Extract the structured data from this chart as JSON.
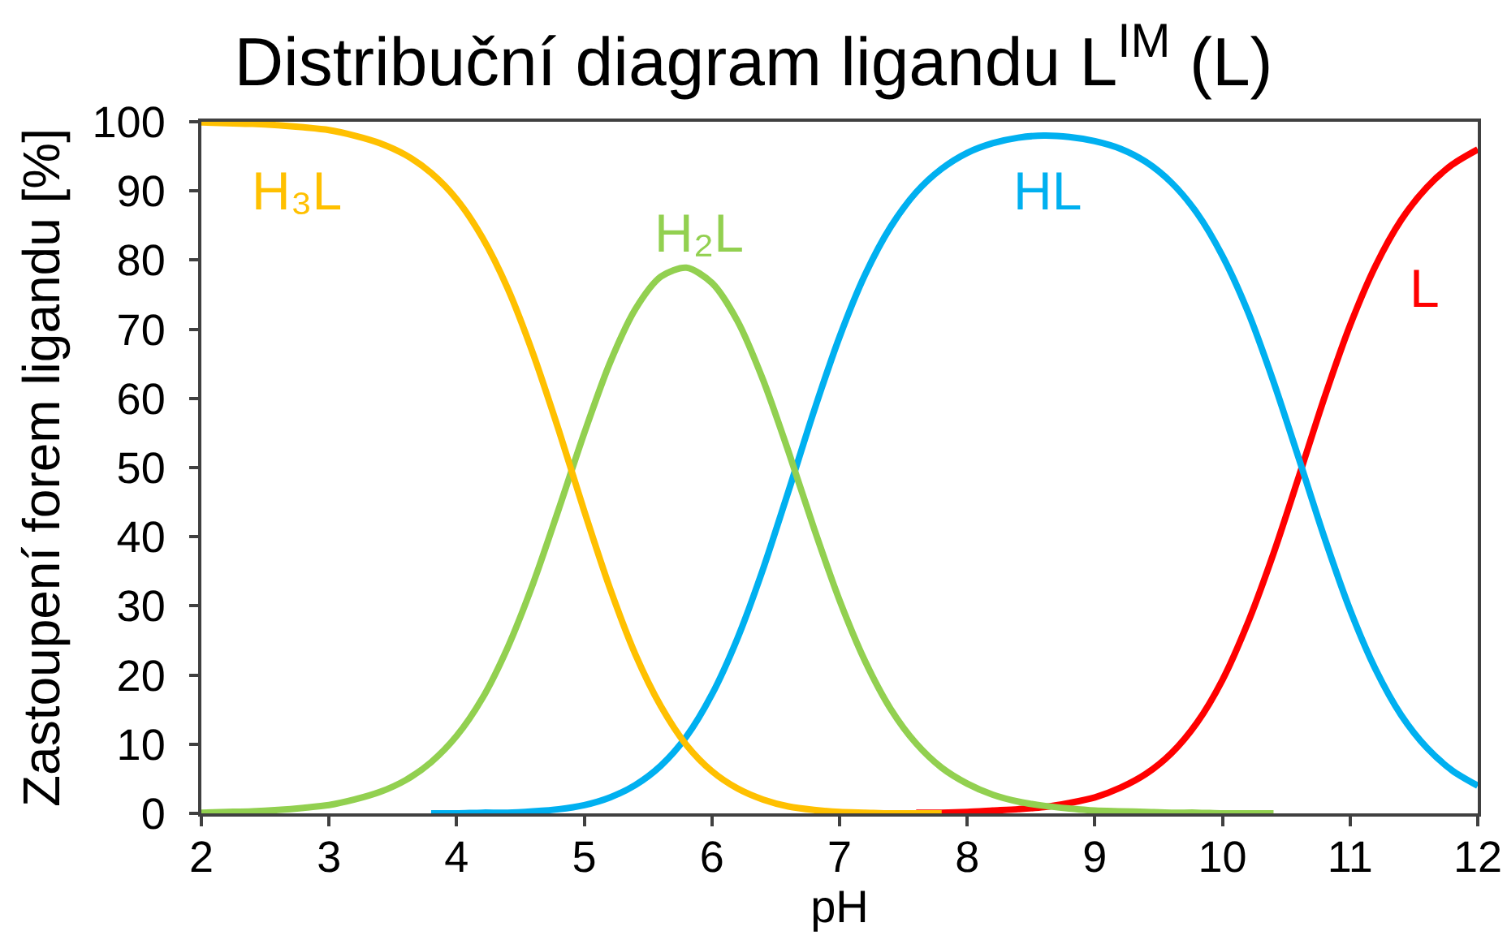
{
  "chart_data": {
    "type": "line",
    "title": "Distribuční diagram ligandu L$^{IM}$ (L)",
    "xlabel": "pH",
    "ylabel": "Zastoupení forem ligandu [%]",
    "xlim": [
      2,
      12
    ],
    "ylim": [
      0,
      100
    ],
    "xticks": [
      2,
      3,
      4,
      5,
      6,
      7,
      8,
      9,
      10,
      11,
      12
    ],
    "yticks": [
      0,
      10,
      20,
      30,
      40,
      50,
      60,
      70,
      80,
      90,
      100
    ],
    "grid": false,
    "legend": false,
    "marker": "none",
    "line_style": "solid",
    "series": [
      {
        "name": "H₃L",
        "color": "#ffc000",
        "x": [
          2.0,
          2.2,
          2.4,
          2.6,
          2.8,
          3.0,
          3.2,
          3.4,
          3.6,
          3.8,
          4.0,
          4.2,
          4.4,
          4.6,
          4.8,
          5.0,
          5.2,
          5.4,
          5.6,
          5.8,
          6.0,
          6.2,
          6.4,
          6.6,
          6.8,
          7.0,
          7.2,
          7.4,
          7.6,
          7.8
        ],
        "values": [
          99.9,
          99.8,
          99.7,
          99.5,
          99.2,
          98.8,
          98.0,
          96.9,
          95.2,
          92.6,
          88.8,
          83.3,
          75.9,
          66.4,
          55.4,
          43.7,
          32.6,
          23.0,
          15.5,
          9.9,
          6.1,
          3.6,
          2.0,
          1.0,
          0.5,
          0.2,
          0.1,
          0.0,
          0.0,
          0.0
        ]
      },
      {
        "name": "H₂L",
        "color": "#92d050",
        "x": [
          2.0,
          2.2,
          2.4,
          2.6,
          2.8,
          3.0,
          3.2,
          3.4,
          3.6,
          3.8,
          4.0,
          4.2,
          4.4,
          4.6,
          4.8,
          5.0,
          5.2,
          5.4,
          5.6,
          5.8,
          6.0,
          6.2,
          6.4,
          6.6,
          6.8,
          7.0,
          7.2,
          7.4,
          7.6,
          7.8,
          8.0,
          8.2,
          8.4,
          8.6,
          8.8,
          9.0,
          9.2,
          9.4,
          9.6,
          9.8,
          10.0,
          10.2,
          10.4
        ],
        "values": [
          0.1,
          0.2,
          0.3,
          0.5,
          0.8,
          1.2,
          2.0,
          3.1,
          4.8,
          7.4,
          11.2,
          16.6,
          24.0,
          33.3,
          44.0,
          55.0,
          65.1,
          72.9,
          77.6,
          78.9,
          76.7,
          71.2,
          62.7,
          52.3,
          41.2,
          30.8,
          22.0,
          15.1,
          10.1,
          6.6,
          4.3,
          2.7,
          1.7,
          1.1,
          0.7,
          0.4,
          0.3,
          0.2,
          0.1,
          0.1,
          0.0,
          0.0,
          0.0
        ]
      },
      {
        "name": "HL",
        "color": "#00b0f0",
        "x": [
          3.8,
          4.0,
          4.2,
          4.4,
          4.6,
          4.8,
          5.0,
          5.2,
          5.4,
          5.6,
          5.8,
          6.0,
          6.2,
          6.4,
          6.6,
          6.8,
          7.0,
          7.2,
          7.4,
          7.6,
          7.8,
          8.0,
          8.2,
          8.4,
          8.6,
          8.8,
          9.0,
          9.2,
          9.4,
          9.6,
          9.8,
          10.0,
          10.2,
          10.4,
          10.6,
          10.8,
          11.0,
          11.2,
          11.4,
          11.6,
          11.8,
          12.0
        ],
        "values": [
          0.0,
          0.0,
          0.1,
          0.1,
          0.3,
          0.6,
          1.2,
          2.3,
          4.1,
          6.9,
          11.1,
          17.2,
          25.3,
          35.3,
          46.6,
          58.2,
          68.9,
          77.9,
          84.8,
          89.8,
          93.2,
          95.5,
          96.9,
          97.7,
          98.0,
          97.8,
          97.2,
          96.1,
          94.2,
          91.2,
          86.8,
          80.6,
          72.5,
          62.4,
          51.2,
          39.8,
          29.4,
          20.8,
          14.2,
          9.5,
          6.2,
          4.0
        ]
      },
      {
        "name": "L",
        "color": "#ff0000",
        "x": [
          7.6,
          7.8,
          8.0,
          8.2,
          8.4,
          8.6,
          8.8,
          9.0,
          9.2,
          9.4,
          9.6,
          9.8,
          10.0,
          10.2,
          10.4,
          10.6,
          10.8,
          11.0,
          11.2,
          11.4,
          11.6,
          11.8,
          12.0
        ],
        "values": [
          0.1,
          0.1,
          0.2,
          0.4,
          0.6,
          0.9,
          1.5,
          2.3,
          3.7,
          5.7,
          8.7,
          13.1,
          19.3,
          27.6,
          37.6,
          48.8,
          60.2,
          70.6,
          79.2,
          85.8,
          90.5,
          93.8,
          96.0
        ]
      }
    ]
  }
}
